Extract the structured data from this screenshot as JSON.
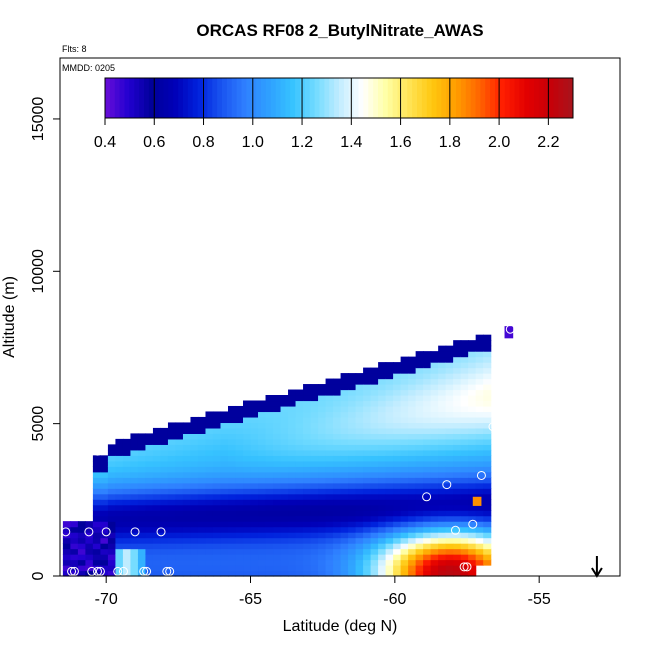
{
  "chart_data": {
    "type": "heatmap",
    "title": "ORCAS RF08 2_ButylNitrate_AWAS",
    "flights_label": "Flts: 8",
    "date_label": "MMDD: 0205",
    "xlabel": "Latitude (deg N)",
    "ylabel": "Altitude (m)",
    "xlim": [
      -71.6,
      -52.2
    ],
    "ylim": [
      0,
      17000
    ],
    "x_ticks": [
      "-70",
      "-65",
      "-60",
      "-55"
    ],
    "y_ticks": [
      "0",
      "5000",
      "10000",
      "15000"
    ],
    "colorbar": {
      "range": [
        0.4,
        2.3
      ],
      "ticks": [
        "0.4",
        "0.6",
        "0.8",
        "1.0",
        "1.2",
        "1.4",
        "1.6",
        "1.8",
        "2.0",
        "2.2"
      ],
      "placement": "top-inside",
      "colors": [
        "#6a0dd8",
        "#2200d0",
        "#00009a",
        "#0000b8",
        "#0022dd",
        "#1a55f0",
        "#2f80ff",
        "#2fa0ff",
        "#36c2ff",
        "#72dbff",
        "#c0ecff",
        "#ffffff",
        "#ffffa6",
        "#ffe455",
        "#ffc70f",
        "#ff9e00",
        "#ff6400",
        "#ff1e00",
        "#e30000",
        "#c80008",
        "#a8141c"
      ]
    },
    "samples": [
      {
        "x": -71.2,
        "y": 150
      },
      {
        "x": -71.1,
        "y": 150
      },
      {
        "x": -70.5,
        "y": 150
      },
      {
        "x": -70.3,
        "y": 150
      },
      {
        "x": -70.2,
        "y": 150
      },
      {
        "x": -69.6,
        "y": 150
      },
      {
        "x": -69.4,
        "y": 150
      },
      {
        "x": -68.7,
        "y": 150
      },
      {
        "x": -68.6,
        "y": 150
      },
      {
        "x": -67.9,
        "y": 150
      },
      {
        "x": -67.8,
        "y": 150
      },
      {
        "x": -71.4,
        "y": 1450
      },
      {
        "x": -70.6,
        "y": 1450
      },
      {
        "x": -70.0,
        "y": 1450
      },
      {
        "x": -69.0,
        "y": 1450
      },
      {
        "x": -68.1,
        "y": 1450
      },
      {
        "x": -70.3,
        "y": 4100
      },
      {
        "x": -58.9,
        "y": 2600
      },
      {
        "x": -58.2,
        "y": 3000
      },
      {
        "x": -57.0,
        "y": 3300
      },
      {
        "x": -56.6,
        "y": 4900
      },
      {
        "x": -57.3,
        "y": 1700
      },
      {
        "x": -57.9,
        "y": 1500
      },
      {
        "x": -57.6,
        "y": 300
      },
      {
        "x": -57.5,
        "y": 300
      },
      {
        "x": -56.0,
        "y": 8100
      }
    ],
    "marker": {
      "type": "arrow-down",
      "x": -53.0
    },
    "grid": false
  }
}
